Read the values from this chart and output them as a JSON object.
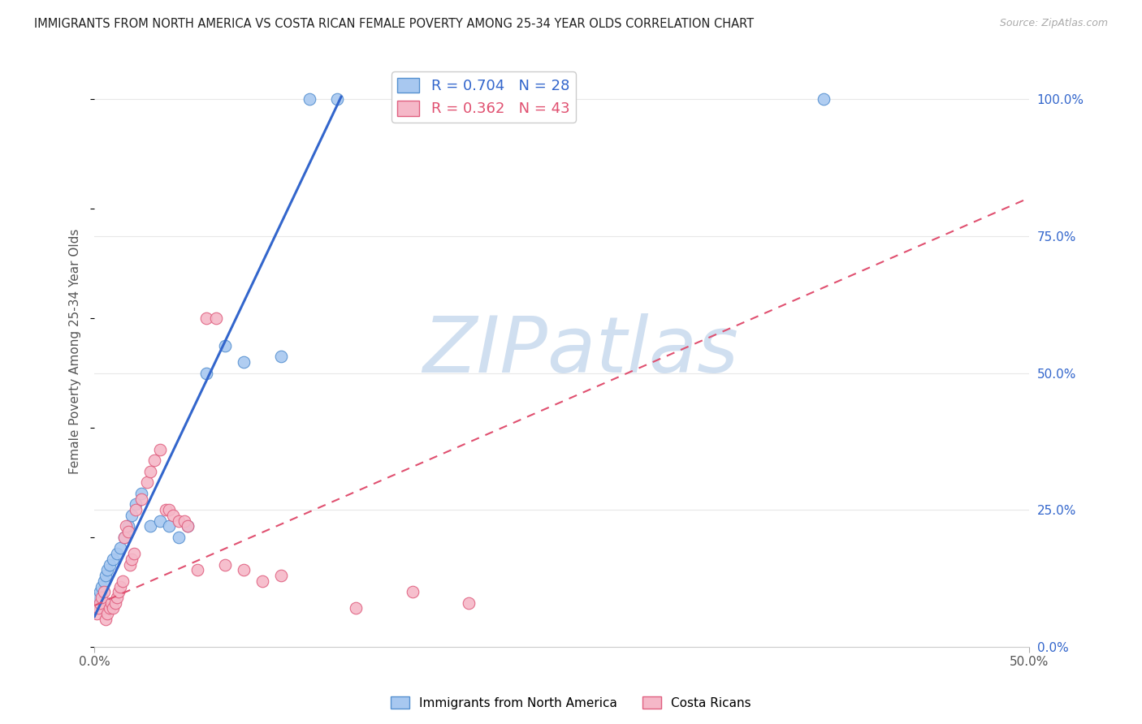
{
  "title": "IMMIGRANTS FROM NORTH AMERICA VS COSTA RICAN FEMALE POVERTY AMONG 25-34 YEAR OLDS CORRELATION CHART",
  "source": "Source: ZipAtlas.com",
  "ylabel": "Female Poverty Among 25-34 Year Olds",
  "xlim": [
    0.0,
    0.5
  ],
  "ylim": [
    0.0,
    1.08
  ],
  "x_tick_pos": [
    0.0,
    0.5
  ],
  "x_tick_labels": [
    "0.0%",
    "50.0%"
  ],
  "y_tick_pos": [
    0.0,
    0.25,
    0.5,
    0.75,
    1.0
  ],
  "y_tick_labels": [
    "0.0%",
    "25.0%",
    "50.0%",
    "75.0%",
    "100.0%"
  ],
  "blue_R": 0.704,
  "blue_N": 28,
  "pink_R": 0.362,
  "pink_N": 43,
  "blue_fill": "#a8c8f0",
  "blue_edge": "#5590d0",
  "pink_fill": "#f5b8c8",
  "pink_edge": "#e06080",
  "blue_line_color": "#3366cc",
  "pink_line_color": "#e05070",
  "watermark": "ZIPatlas",
  "watermark_color": "#d0dff0",
  "background_color": "#ffffff",
  "grid_color": "#e8e8e8",
  "blue_x": [
    0.001,
    0.002,
    0.003,
    0.004,
    0.005,
    0.006,
    0.007,
    0.008,
    0.01,
    0.012,
    0.014,
    0.016,
    0.018,
    0.02,
    0.022,
    0.025,
    0.03,
    0.035,
    0.04,
    0.045,
    0.05,
    0.06,
    0.07,
    0.08,
    0.1,
    0.115,
    0.13,
    0.39
  ],
  "blue_y": [
    0.08,
    0.09,
    0.1,
    0.11,
    0.12,
    0.13,
    0.14,
    0.15,
    0.16,
    0.17,
    0.18,
    0.2,
    0.22,
    0.24,
    0.26,
    0.28,
    0.22,
    0.23,
    0.22,
    0.2,
    0.22,
    0.5,
    0.55,
    0.52,
    0.53,
    1.0,
    1.0,
    1.0
  ],
  "pink_x": [
    0.001,
    0.002,
    0.003,
    0.004,
    0.005,
    0.006,
    0.007,
    0.008,
    0.009,
    0.01,
    0.011,
    0.012,
    0.013,
    0.014,
    0.015,
    0.016,
    0.017,
    0.018,
    0.019,
    0.02,
    0.021,
    0.022,
    0.025,
    0.028,
    0.03,
    0.032,
    0.035,
    0.038,
    0.04,
    0.042,
    0.045,
    0.048,
    0.05,
    0.055,
    0.06,
    0.065,
    0.07,
    0.08,
    0.09,
    0.1,
    0.14,
    0.17,
    0.2
  ],
  "pink_y": [
    0.06,
    0.07,
    0.08,
    0.09,
    0.1,
    0.05,
    0.06,
    0.07,
    0.08,
    0.07,
    0.08,
    0.09,
    0.1,
    0.11,
    0.12,
    0.2,
    0.22,
    0.21,
    0.15,
    0.16,
    0.17,
    0.25,
    0.27,
    0.3,
    0.32,
    0.34,
    0.36,
    0.25,
    0.25,
    0.24,
    0.23,
    0.23,
    0.22,
    0.14,
    0.6,
    0.6,
    0.15,
    0.14,
    0.12,
    0.13,
    0.07,
    0.1,
    0.08
  ],
  "blue_line_x0": 0.0,
  "blue_line_y0": 0.055,
  "blue_line_x1": 0.132,
  "blue_line_y1": 1.005,
  "pink_line_x0": 0.0,
  "pink_line_y0": 0.075,
  "pink_line_x1": 0.5,
  "pink_line_y1": 0.82
}
